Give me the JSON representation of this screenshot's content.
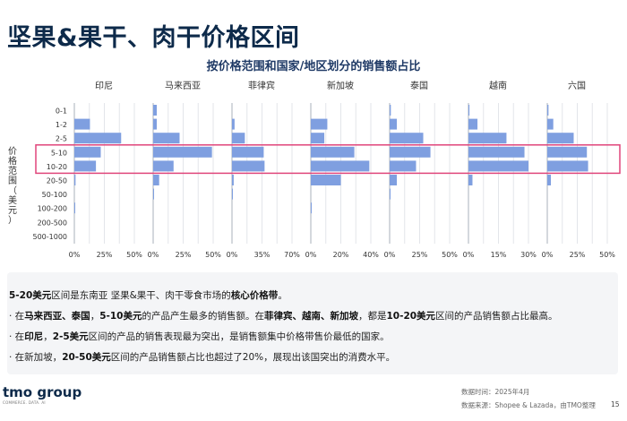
{
  "page_title": "坚果&果干、肉干价格区间",
  "chart_data": {
    "type": "bar",
    "orientation": "horizontal",
    "title": "按价格范围和国家/地区划分的销售额占比",
    "ylabel": "价格范围（美元）",
    "categories": [
      "0-1",
      "1-2",
      "2-5",
      "5-10",
      "10-20",
      "20-50",
      "50-100",
      "100-200",
      "200-500",
      "500-1000"
    ],
    "highlighted_categories": [
      "5-10",
      "10-20"
    ],
    "highlight_color": "#e0457b",
    "bar_color": "#7f9fe0",
    "grid": true,
    "panels": [
      {
        "name": "印尼",
        "xlim": [
          0,
          50
        ],
        "ticks": [
          "0%",
          "25%",
          "50%"
        ],
        "values": [
          0,
          13,
          39,
          22,
          18,
          1,
          0,
          0.3,
          0,
          0
        ]
      },
      {
        "name": "马来西亚",
        "xlim": [
          0,
          50
        ],
        "ticks": [
          "0%",
          "25%",
          "50%"
        ],
        "values": [
          3,
          3,
          22,
          49,
          17,
          5,
          0.5,
          0,
          0,
          0
        ]
      },
      {
        "name": "菲律宾",
        "xlim": [
          0,
          70
        ],
        "ticks": [
          "0%",
          "35%",
          "70%"
        ],
        "values": [
          0,
          3,
          15,
          37,
          38,
          2,
          0.5,
          0,
          0,
          0
        ]
      },
      {
        "name": "新加坡",
        "xlim": [
          0,
          40
        ],
        "ticks": [
          "0%",
          "20%",
          "40%"
        ],
        "values": [
          0,
          11,
          9,
          29,
          39,
          20,
          0,
          0.5,
          0,
          0
        ]
      },
      {
        "name": "泰国",
        "xlim": [
          0,
          50
        ],
        "ticks": [
          "0%",
          "25%",
          "50%"
        ],
        "values": [
          1,
          6,
          28,
          34,
          22,
          6,
          0.5,
          0,
          0,
          0
        ]
      },
      {
        "name": "越南",
        "xlim": [
          0,
          30
        ],
        "ticks": [
          "0%",
          "15%",
          "30%"
        ],
        "values": [
          0.5,
          4.5,
          19,
          28,
          30,
          2,
          0,
          0,
          0,
          0
        ]
      },
      {
        "name": "六国",
        "xlim": [
          0,
          50
        ],
        "ticks": [
          "0%",
          "25%",
          "50%"
        ],
        "values": [
          1,
          5,
          22,
          33,
          34,
          3,
          0,
          0,
          0,
          0
        ]
      }
    ]
  },
  "summary": {
    "lines": [
      [
        {
          "t": "5-20美元",
          "b": true
        },
        {
          "t": "区间是东南亚 坚果&果干、肉干零食市场的"
        },
        {
          "t": "核心价格带",
          "b": true
        },
        {
          "t": "。"
        }
      ],
      [
        {
          "t": "· 在"
        },
        {
          "t": "马来西亚、泰国",
          "b": true
        },
        {
          "t": "，"
        },
        {
          "t": "5-10美元",
          "b": true
        },
        {
          "t": "的产品产生最多的销售额。在"
        },
        {
          "t": "菲律宾、越南、新加坡",
          "b": true
        },
        {
          "t": "，都是"
        },
        {
          "t": "10-20美元",
          "b": true
        },
        {
          "t": "区间的产品销售额占比最高。"
        }
      ],
      [
        {
          "t": "· 在"
        },
        {
          "t": "印尼",
          "b": true
        },
        {
          "t": "，"
        },
        {
          "t": "2-5美元",
          "b": true
        },
        {
          "t": "区间的产品的销售表现最为突出，是销售额集中价格带售价最低的国家。"
        }
      ],
      [
        {
          "t": "· 在新加坡，"
        },
        {
          "t": "20-50美元",
          "b": true
        },
        {
          "t": "区间的产品销售额占比也超过了20%，展现出该国突出的消费水平。"
        }
      ]
    ]
  },
  "footer": {
    "logo": "tmo group",
    "logo_sub": "COMMERCE. DATA. AI",
    "data_time": "数据时间：2025年4月",
    "data_source": "数据来源：Shopee & Lazada，由TMO整理",
    "page_number": "15"
  }
}
